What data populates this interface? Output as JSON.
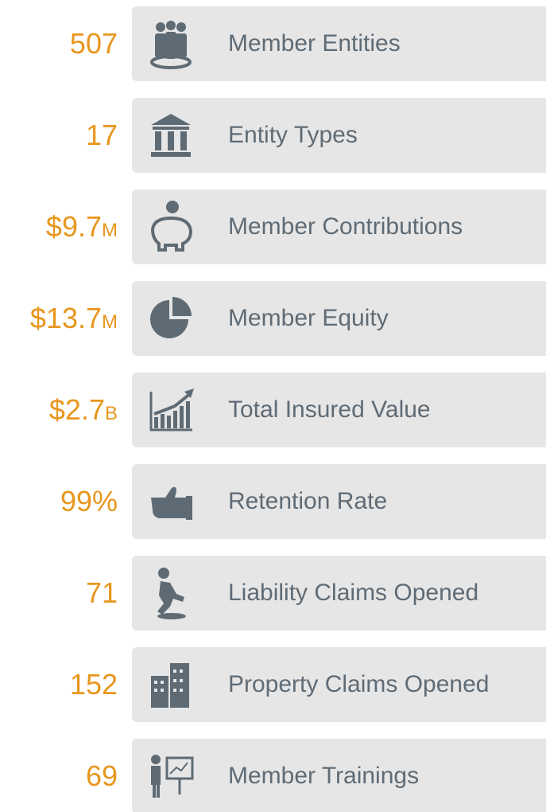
{
  "items": [
    {
      "value": "507",
      "label": "Member Entities"
    },
    {
      "value": "17",
      "label": "Entity Types"
    },
    {
      "value": "$9.7",
      "suffix": "M",
      "label": "Member Contributions"
    },
    {
      "value": "$13.7",
      "suffix": "M",
      "label": "Member Equity"
    },
    {
      "value": "$2.7",
      "suffix": "B",
      "label": "Total Insured Value"
    },
    {
      "value": "99%",
      "label": "Retention Rate"
    },
    {
      "value": "71",
      "label": "Liability Claims Opened"
    },
    {
      "value": "152",
      "label": "Property Claims Opened"
    },
    {
      "value": "69",
      "label": "Member Trainings"
    }
  ]
}
